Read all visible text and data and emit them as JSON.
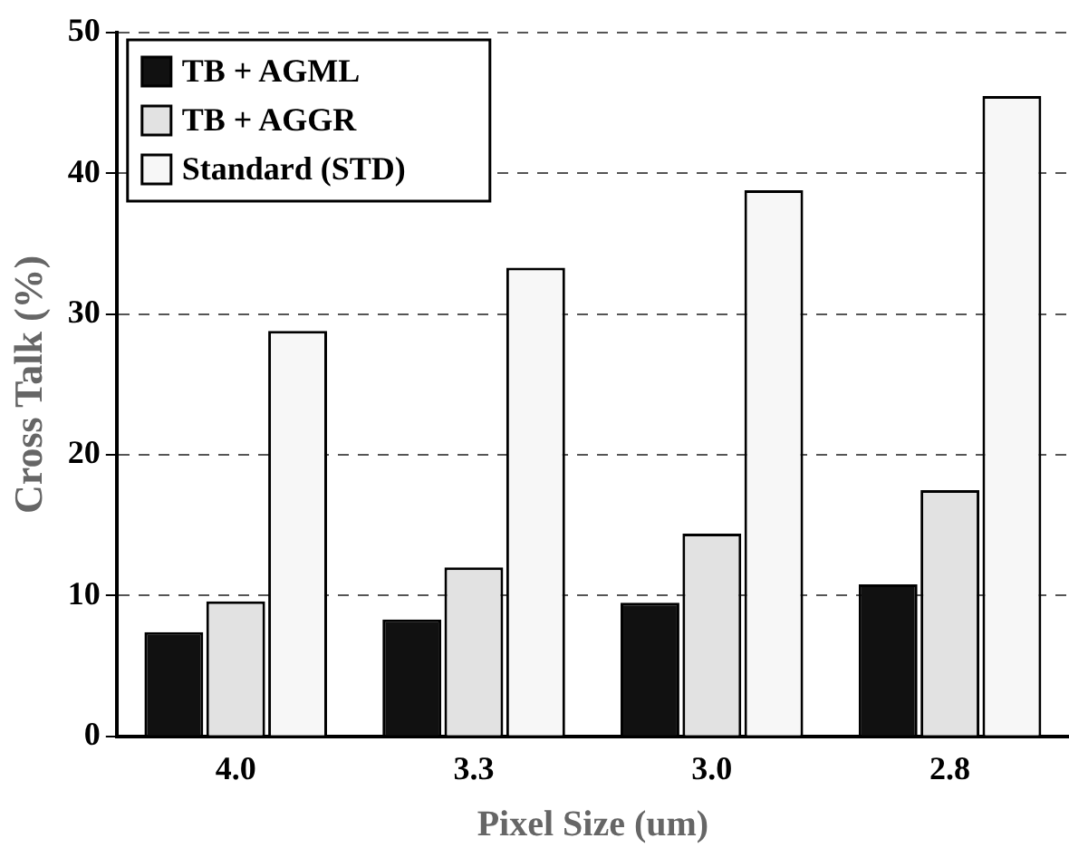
{
  "chart_data": {
    "type": "bar",
    "xlabel": "Pixel Size (um)",
    "ylabel": "Cross Talk (%)",
    "categories": [
      "4.0",
      "3.3",
      "3.0",
      "2.8"
    ],
    "series": [
      {
        "name": "TB + AGML",
        "color": "#111111",
        "values": [
          7.4,
          8.3,
          9.5,
          10.8
        ]
      },
      {
        "name": "TB + AGGR",
        "color": "#e2e2e2",
        "values": [
          9.6,
          12,
          14.4,
          17.5
        ]
      },
      {
        "name": "Standard (STD)",
        "color": "#f7f7f7",
        "values": [
          28.8,
          33.3,
          38.8,
          45.5
        ]
      }
    ],
    "ylim": [
      0,
      50
    ],
    "yticks": [
      0,
      10,
      20,
      30,
      40,
      50
    ],
    "grid": "y",
    "legend": "top left"
  }
}
